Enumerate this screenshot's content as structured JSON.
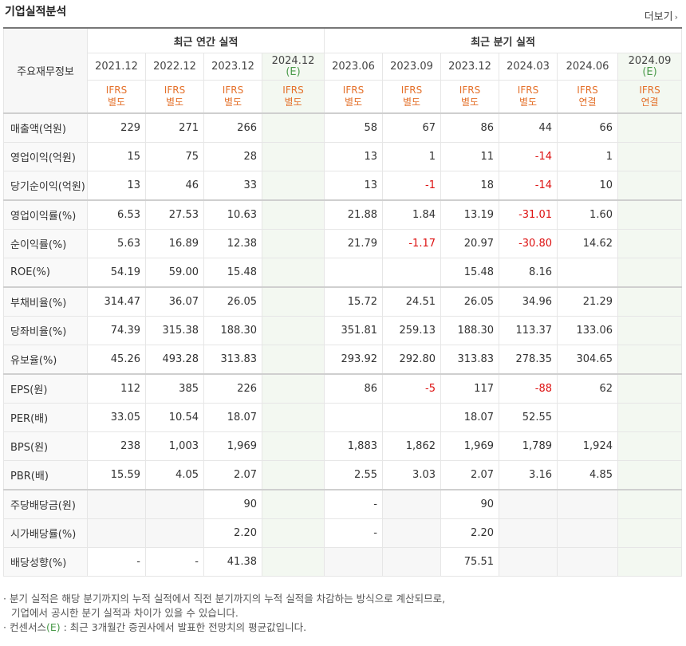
{
  "header": {
    "title": "기업실적분석",
    "more_label": "더보기"
  },
  "table": {
    "corner_label": "주요재무정보",
    "group_annual": "최근 연간 실적",
    "group_quarter": "최근 분기 실적",
    "columns": [
      {
        "period": "2021.12",
        "est": "",
        "std1": "IFRS",
        "std2": "별도",
        "estimate": false
      },
      {
        "period": "2022.12",
        "est": "",
        "std1": "IFRS",
        "std2": "별도",
        "estimate": false
      },
      {
        "period": "2023.12",
        "est": "",
        "std1": "IFRS",
        "std2": "별도",
        "estimate": false
      },
      {
        "period": "2024.12",
        "est": "(E)",
        "std1": "IFRS",
        "std2": "별도",
        "estimate": true
      },
      {
        "period": "2023.06",
        "est": "",
        "std1": "IFRS",
        "std2": "별도",
        "estimate": false
      },
      {
        "period": "2023.09",
        "est": "",
        "std1": "IFRS",
        "std2": "별도",
        "estimate": false
      },
      {
        "period": "2023.12",
        "est": "",
        "std1": "IFRS",
        "std2": "별도",
        "estimate": false
      },
      {
        "period": "2024.03",
        "est": "",
        "std1": "IFRS",
        "std2": "별도",
        "estimate": false
      },
      {
        "period": "2024.06",
        "est": "",
        "std1": "IFRS",
        "std2": "연결",
        "estimate": false
      },
      {
        "period": "2024.09",
        "est": "(E)",
        "std1": "IFRS",
        "std2": "연결",
        "estimate": true
      }
    ],
    "rows": [
      {
        "label": "매출액(억원)",
        "sep": true,
        "values": [
          "229",
          "271",
          "266",
          "",
          "58",
          "67",
          "86",
          "44",
          "66",
          ""
        ]
      },
      {
        "label": "영업이익(억원)",
        "sep": false,
        "values": [
          "15",
          "75",
          "28",
          "",
          "13",
          "1",
          "11",
          "-14",
          "1",
          ""
        ]
      },
      {
        "label": "당기순이익(억원)",
        "sep": false,
        "values": [
          "13",
          "46",
          "33",
          "",
          "13",
          "-1",
          "18",
          "-14",
          "10",
          ""
        ]
      },
      {
        "label": "영업이익률(%)",
        "sep": true,
        "values": [
          "6.53",
          "27.53",
          "10.63",
          "",
          "21.88",
          "1.84",
          "13.19",
          "-31.01",
          "1.60",
          ""
        ]
      },
      {
        "label": "순이익률(%)",
        "sep": false,
        "values": [
          "5.63",
          "16.89",
          "12.38",
          "",
          "21.79",
          "-1.17",
          "20.97",
          "-30.80",
          "14.62",
          ""
        ]
      },
      {
        "label": "ROE(%)",
        "sep": false,
        "values": [
          "54.19",
          "59.00",
          "15.48",
          "",
          "",
          "",
          "15.48",
          "8.16",
          "",
          ""
        ]
      },
      {
        "label": "부채비율(%)",
        "sep": true,
        "values": [
          "314.47",
          "36.07",
          "26.05",
          "",
          "15.72",
          "24.51",
          "26.05",
          "34.96",
          "21.29",
          ""
        ]
      },
      {
        "label": "당좌비율(%)",
        "sep": false,
        "values": [
          "74.39",
          "315.38",
          "188.30",
          "",
          "351.81",
          "259.13",
          "188.30",
          "113.37",
          "133.06",
          ""
        ]
      },
      {
        "label": "유보율(%)",
        "sep": false,
        "values": [
          "45.26",
          "493.28",
          "313.83",
          "",
          "293.92",
          "292.80",
          "313.83",
          "278.35",
          "304.65",
          ""
        ]
      },
      {
        "label": "EPS(원)",
        "sep": true,
        "values": [
          "112",
          "385",
          "226",
          "",
          "86",
          "-5",
          "117",
          "-88",
          "62",
          ""
        ]
      },
      {
        "label": "PER(배)",
        "sep": false,
        "values": [
          "33.05",
          "10.54",
          "18.07",
          "",
          "",
          "",
          "18.07",
          "52.55",
          "",
          ""
        ]
      },
      {
        "label": "BPS(원)",
        "sep": false,
        "values": [
          "238",
          "1,003",
          "1,969",
          "",
          "1,883",
          "1,862",
          "1,969",
          "1,789",
          "1,924",
          ""
        ]
      },
      {
        "label": "PBR(배)",
        "sep": false,
        "values": [
          "15.59",
          "4.05",
          "2.07",
          "",
          "2.55",
          "3.03",
          "2.07",
          "3.16",
          "4.85",
          ""
        ]
      },
      {
        "label": "주당배당금(원)",
        "sep": true,
        "values": [
          "",
          "",
          "90",
          "",
          "-",
          "",
          "90",
          "",
          "",
          ""
        ]
      },
      {
        "label": "시가배당률(%)",
        "sep": false,
        "values": [
          "",
          "",
          "2.20",
          "",
          "-",
          "",
          "2.20",
          "",
          "",
          ""
        ]
      },
      {
        "label": "배당성향(%)",
        "sep": false,
        "values": [
          "-",
          "-",
          "41.38",
          "",
          "",
          "",
          "75.51",
          "",
          "",
          ""
        ]
      }
    ],
    "empty_cells": [
      [
        13,
        0
      ],
      [
        13,
        1
      ],
      [
        13,
        5
      ],
      [
        13,
        7
      ],
      [
        13,
        8
      ],
      [
        14,
        0
      ],
      [
        14,
        1
      ],
      [
        14,
        5
      ],
      [
        14,
        7
      ],
      [
        14,
        8
      ],
      [
        15,
        4
      ],
      [
        15,
        5
      ],
      [
        15,
        7
      ],
      [
        15,
        8
      ]
    ]
  },
  "notes": {
    "line1": "· 분기 실적은 해당 분기까지의 누적 실적에서 직전 분기까지의 누적 실적을 차감하는 방식으로 계산되므로,",
    "line2": "기업에서 공시한 분기 실적과 차이가 있을 수 있습니다.",
    "line3_prefix": "· 컨센서스",
    "line3_e": "(E)",
    "line3_suffix": " : 최근 3개월간 증권사에서 발표한 전망치의 평균값입니다."
  },
  "colors": {
    "negative": "#dd1111",
    "estimate_bg": "#f3f8f1",
    "standard": "#e4702a",
    "estimate_text": "#4a9a4a"
  }
}
